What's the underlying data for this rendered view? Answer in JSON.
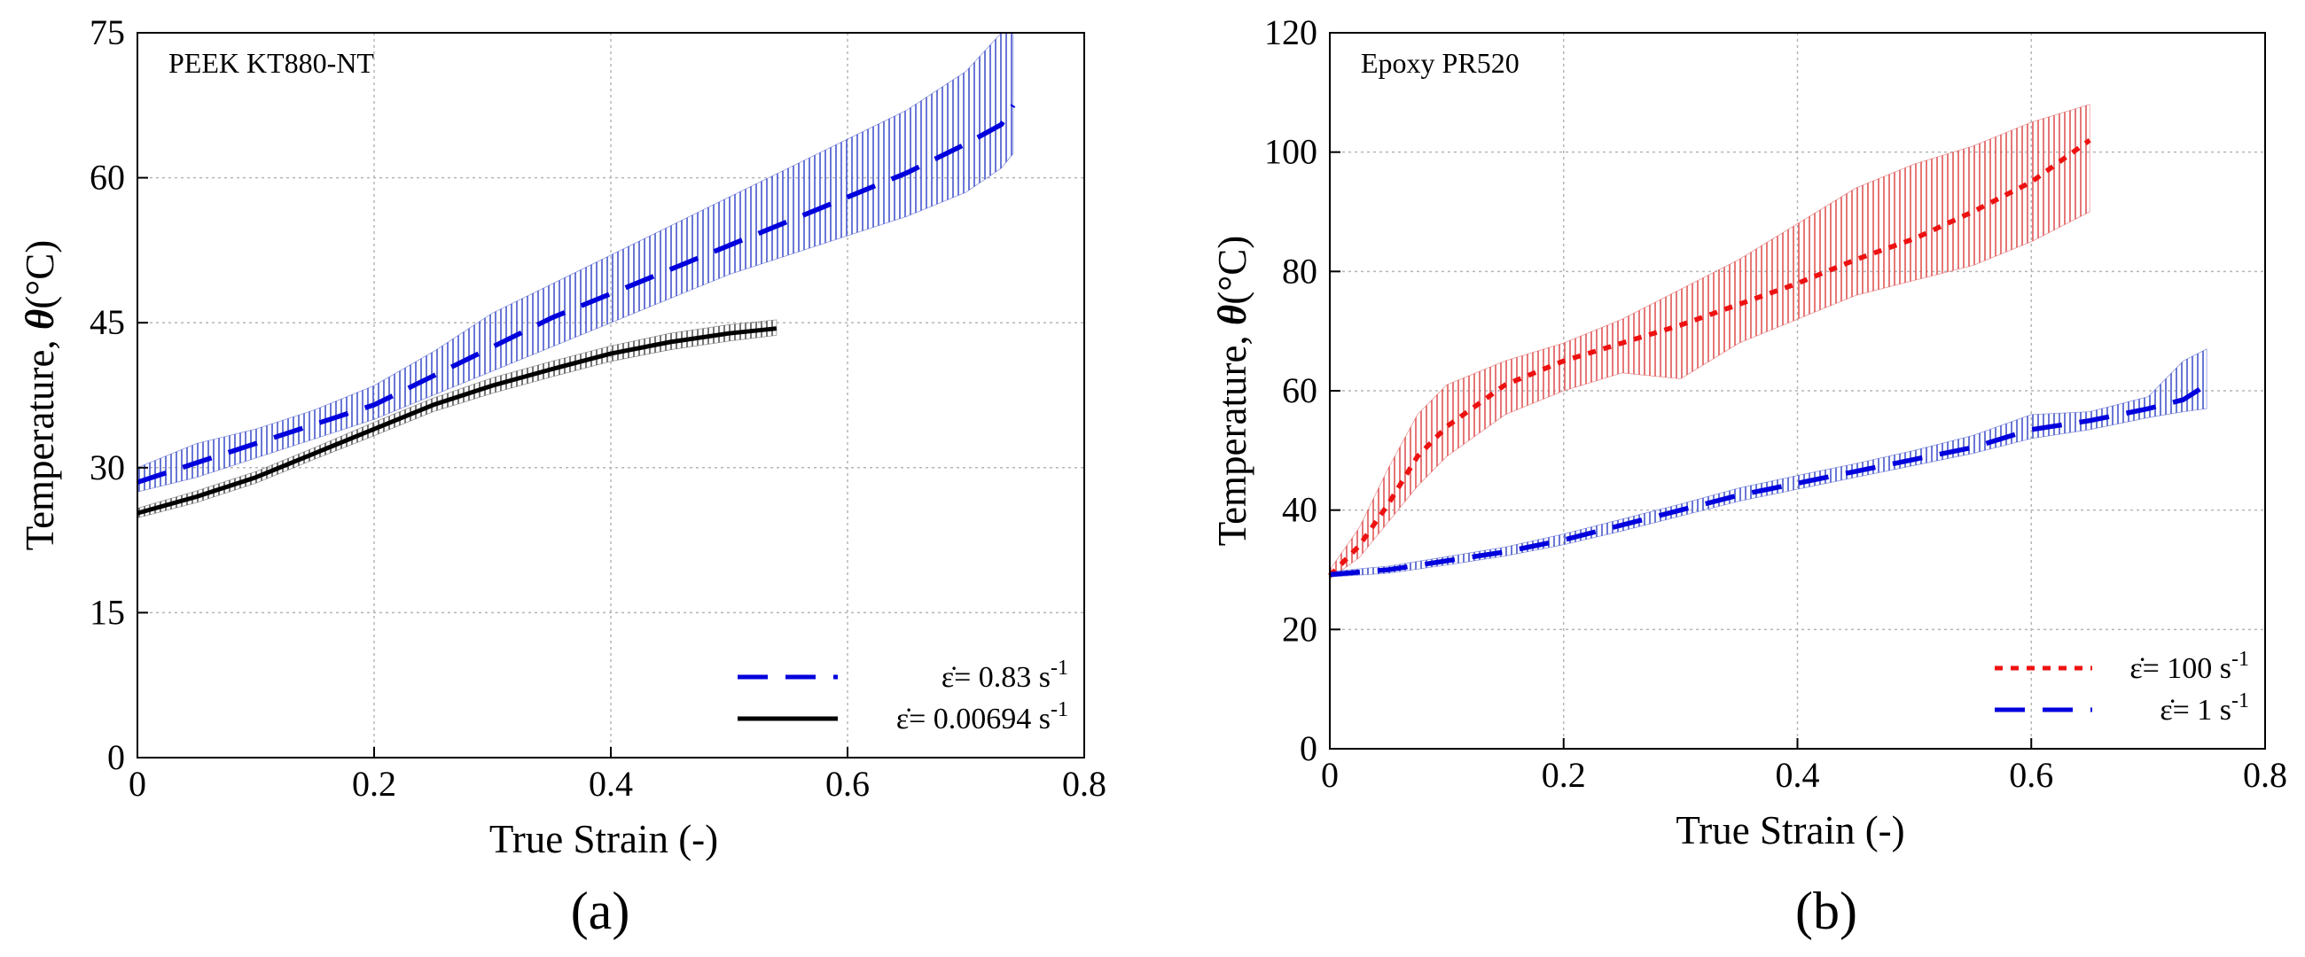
{
  "colors": {
    "blue": "#0000dd",
    "black": "#000000",
    "red": "#ee1111",
    "blue_band": "#4455cc",
    "black_band": "#555555",
    "red_band": "#e05555",
    "grid": "#b5b5b5"
  },
  "chart_data": [
    {
      "type": "line",
      "panel_label": "(a)",
      "annotation": "PEEK KT880-NT",
      "xlabel": "True Strain (-)",
      "ylabel": "Temperature, θ(°C)",
      "ylabel_main": "Temperature, ",
      "ylabel_symbol": "θ",
      "ylabel_unit": "(°C)",
      "xlim": [
        0,
        0.8
      ],
      "ylim": [
        0,
        75
      ],
      "xticks": [
        0,
        0.2,
        0.4,
        0.6,
        0.8
      ],
      "xtick_labels": [
        "0",
        "0.2",
        "0.4",
        "0.6",
        "0.8"
      ],
      "yticks": [
        0,
        15,
        30,
        45,
        60,
        75
      ],
      "ytick_labels": [
        "0",
        "15",
        "30",
        "45",
        "60",
        "75"
      ],
      "grid": true,
      "legend_position": "bottom-right",
      "series": [
        {
          "name": "ε̇= 0.83 s-1",
          "legend_prefix": "ε̇= 0.83 s",
          "legend_sup": "-1",
          "style": "dashed",
          "color": "#0000dd",
          "band_color": "#4455cc",
          "x": [
            0,
            0.05,
            0.1,
            0.15,
            0.2,
            0.25,
            0.3,
            0.35,
            0.4,
            0.45,
            0.5,
            0.55,
            0.6,
            0.65,
            0.7,
            0.73,
            0.74
          ],
          "y": [
            28.5,
            30.5,
            32.5,
            34.5,
            36.5,
            39.5,
            42.5,
            45.5,
            48,
            50.5,
            53,
            55.5,
            58,
            60.5,
            63.5,
            65.5,
            67.5
          ],
          "band_lower": [
            27.5,
            29,
            31,
            33,
            35,
            37.5,
            40,
            42.5,
            45,
            47.5,
            50,
            52,
            54,
            56,
            58.5,
            61,
            62.5
          ],
          "band_upper": [
            30,
            32.5,
            34,
            36,
            38.5,
            42,
            46,
            49,
            52,
            55,
            58,
            61,
            64,
            67,
            71,
            75,
            75
          ]
        },
        {
          "name": "ε̇= 0.00694 s-1",
          "legend_prefix": "ε̇= 0.00694 s",
          "legend_sup": "-1",
          "style": "solid",
          "color": "#000000",
          "band_color": "#555555",
          "x": [
            0,
            0.05,
            0.1,
            0.15,
            0.2,
            0.25,
            0.3,
            0.35,
            0.4,
            0.45,
            0.5,
            0.54
          ],
          "y": [
            25.3,
            27,
            29,
            31.5,
            34,
            36.5,
            38.5,
            40.2,
            41.8,
            43,
            43.9,
            44.4
          ],
          "band_lower": [
            24.8,
            26.4,
            28.4,
            30.9,
            33.3,
            35.8,
            37.7,
            39.4,
            41,
            42.2,
            43.1,
            43.7
          ],
          "band_upper": [
            25.8,
            27.6,
            29.6,
            32.1,
            34.7,
            37.2,
            39.3,
            41,
            42.6,
            43.9,
            44.8,
            45.3
          ]
        }
      ]
    },
    {
      "type": "line",
      "panel_label": "(b)",
      "annotation": "Epoxy PR520",
      "xlabel": "True Strain (-)",
      "ylabel": "Temperature, θ(°C)",
      "ylabel_main": "Temperature, ",
      "ylabel_symbol": "θ",
      "ylabel_unit": "(°C)",
      "xlim": [
        0,
        0.8
      ],
      "ylim": [
        0,
        120
      ],
      "xticks": [
        0,
        0.2,
        0.4,
        0.6,
        0.8
      ],
      "xtick_labels": [
        "0",
        "0.2",
        "0.4",
        "0.6",
        "0.8"
      ],
      "yticks": [
        0,
        20,
        40,
        60,
        80,
        100,
        120
      ],
      "ytick_labels": [
        "0",
        "20",
        "40",
        "60",
        "80",
        "100",
        "120"
      ],
      "grid": true,
      "legend_position": "bottom-right",
      "series": [
        {
          "name": "ε̇= 100 s-1",
          "legend_prefix": "ε̇= 100 s",
          "legend_sup": "-1",
          "style": "dotted",
          "color": "#ee1111",
          "band_color": "#e05555",
          "x": [
            0,
            0.025,
            0.05,
            0.075,
            0.1,
            0.15,
            0.2,
            0.25,
            0.3,
            0.35,
            0.4,
            0.45,
            0.5,
            0.55,
            0.6,
            0.65
          ],
          "y": [
            29,
            34,
            41,
            49,
            54,
            61,
            65,
            68,
            71,
            74.5,
            78,
            82,
            85.5,
            90,
            95,
            102
          ],
          "band_lower": [
            28.5,
            32,
            38,
            44,
            49,
            56,
            60,
            63,
            62,
            68,
            72,
            76,
            78.5,
            81,
            85,
            90
          ],
          "band_upper": [
            30,
            37,
            47,
            56,
            61,
            65,
            68,
            72,
            77,
            82,
            88,
            94,
            98,
            101,
            105,
            108
          ]
        },
        {
          "name": "ε̇= 1 s-1",
          "legend_prefix": "ε̇= 1 s",
          "legend_sup": "-1",
          "style": "dashed",
          "color": "#0000dd",
          "band_color": "#4455cc",
          "x": [
            0,
            0.05,
            0.1,
            0.15,
            0.2,
            0.25,
            0.3,
            0.35,
            0.4,
            0.45,
            0.5,
            0.55,
            0.6,
            0.65,
            0.7,
            0.73,
            0.75
          ],
          "y": [
            29.2,
            30,
            31.5,
            33,
            35,
            37.5,
            40,
            42.5,
            44.5,
            46.5,
            48.5,
            50.5,
            53.5,
            55,
            57,
            58.5,
            61
          ],
          "band_lower": [
            28.8,
            29.4,
            30.8,
            32.3,
            34.2,
            36.5,
            39,
            41.5,
            43.5,
            45.5,
            47.5,
            49.5,
            52,
            53.5,
            55.5,
            56.5,
            57
          ],
          "band_upper": [
            29.7,
            30.6,
            32.2,
            33.8,
            36,
            38.5,
            41,
            43.7,
            45.8,
            47.8,
            50,
            52.5,
            56,
            56.5,
            59,
            65,
            67
          ]
        }
      ]
    }
  ]
}
